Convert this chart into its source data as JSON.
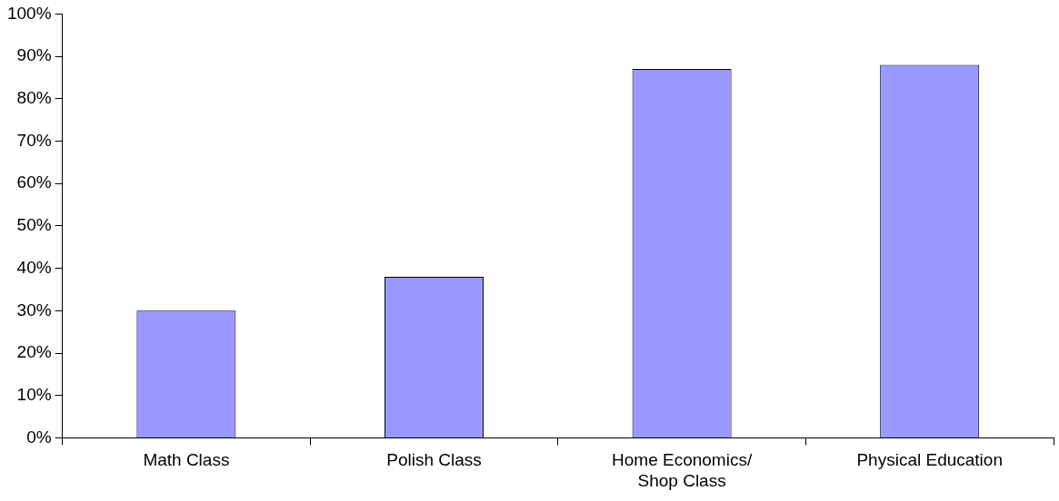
{
  "chart_data": {
    "type": "bar",
    "categories": [
      "Math Class",
      "Polish Class",
      "Home Economics/\nShop Class",
      "Physical Education"
    ],
    "values": [
      30,
      38,
      87,
      88
    ],
    "color": "#9999ff",
    "ylim": [
      0,
      100
    ],
    "yticks": [
      {
        "value": 0,
        "label": "0%"
      },
      {
        "value": 10,
        "label": "10%"
      },
      {
        "value": 20,
        "label": "20%"
      },
      {
        "value": 30,
        "label": "30%"
      },
      {
        "value": 40,
        "label": "40%"
      },
      {
        "value": 50,
        "label": "50%"
      },
      {
        "value": 60,
        "label": "60%"
      },
      {
        "value": 70,
        "label": "70%"
      },
      {
        "value": 80,
        "label": "80%"
      },
      {
        "value": 90,
        "label": "90%"
      },
      {
        "value": 100,
        "label": "100%"
      }
    ],
    "grid": false,
    "legend": false
  }
}
